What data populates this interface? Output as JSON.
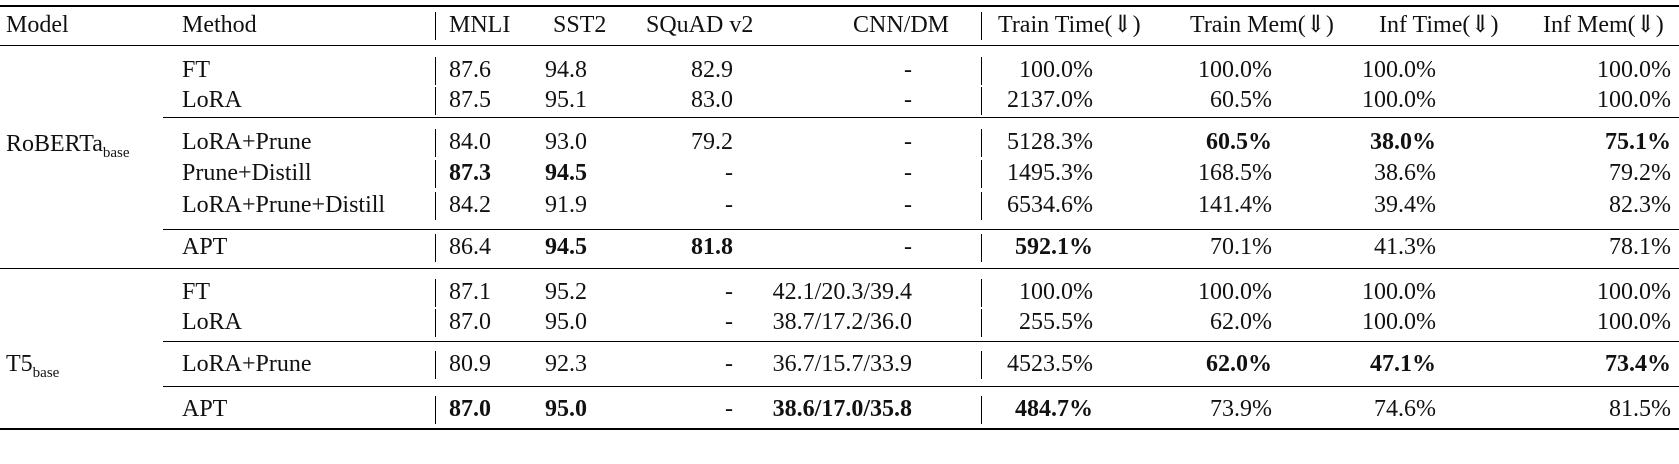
{
  "headers": {
    "model": "Model",
    "method": "Method",
    "mnli": "MNLI",
    "sst2": "SST2",
    "squad": "SQuAD v2",
    "cnndm": "CNN/DM",
    "train_time": "Train Time(⇓)",
    "train_mem": "Train Mem(⇓)",
    "inf_time": "Inf Time(⇓)",
    "inf_mem": "Inf Mem(⇓)"
  },
  "groups": [
    {
      "model": "RoBERTa",
      "model_sub": "base",
      "rows": [
        {
          "method": "FT",
          "mnli": "87.6",
          "sst2": "94.8",
          "squad": "82.9",
          "cnndm": "-",
          "train_time": "100.0%",
          "train_mem": "100.0%",
          "inf_time": "100.0%",
          "inf_mem": "100.0%",
          "bold": []
        },
        {
          "method": "LoRA",
          "mnli": "87.5",
          "sst2": "95.1",
          "squad": "83.0",
          "cnndm": "-",
          "train_time": "2137.0%",
          "train_mem": "60.5%",
          "inf_time": "100.0%",
          "inf_mem": "100.0%",
          "bold": []
        },
        {
          "method": "LoRA+Prune",
          "mnli": "84.0",
          "sst2": "93.0",
          "squad": "79.2",
          "cnndm": "-",
          "train_time": "5128.3%",
          "train_mem": "60.5%",
          "inf_time": "38.0%",
          "inf_mem": "75.1%",
          "bold": [
            "train_mem",
            "inf_time",
            "inf_mem"
          ]
        },
        {
          "method": "Prune+Distill",
          "mnli": "87.3",
          "sst2": "94.5",
          "squad": "-",
          "cnndm": "-",
          "train_time": "1495.3%",
          "train_mem": "168.5%",
          "inf_time": "38.6%",
          "inf_mem": "79.2%",
          "bold": [
            "mnli",
            "sst2"
          ]
        },
        {
          "method": "LoRA+Prune+Distill",
          "mnli": "84.2",
          "sst2": "91.9",
          "squad": "-",
          "cnndm": "-",
          "train_time": "6534.6%",
          "train_mem": "141.4%",
          "inf_time": "39.4%",
          "inf_mem": "82.3%",
          "bold": []
        },
        {
          "method": "APT",
          "mnli": "86.4",
          "sst2": "94.5",
          "squad": "81.8",
          "cnndm": "-",
          "train_time": "592.1%",
          "train_mem": "70.1%",
          "inf_time": "41.3%",
          "inf_mem": "78.1%",
          "bold": [
            "sst2",
            "squad",
            "train_time"
          ]
        }
      ]
    },
    {
      "model": "T5",
      "model_sub": "base",
      "rows": [
        {
          "method": "FT",
          "mnli": "87.1",
          "sst2": "95.2",
          "squad": "-",
          "cnndm": "42.1/20.3/39.4",
          "train_time": "100.0%",
          "train_mem": "100.0%",
          "inf_time": "100.0%",
          "inf_mem": "100.0%",
          "bold": []
        },
        {
          "method": "LoRA",
          "mnli": "87.0",
          "sst2": "95.0",
          "squad": "-",
          "cnndm": "38.7/17.2/36.0",
          "train_time": "255.5%",
          "train_mem": "62.0%",
          "inf_time": "100.0%",
          "inf_mem": "100.0%",
          "bold": []
        },
        {
          "method": "LoRA+Prune",
          "mnli": "80.9",
          "sst2": "92.3",
          "squad": "-",
          "cnndm": "36.7/15.7/33.9",
          "train_time": "4523.5%",
          "train_mem": "62.0%",
          "inf_time": "47.1%",
          "inf_mem": "73.4%",
          "bold": [
            "train_mem",
            "inf_time",
            "inf_mem"
          ]
        },
        {
          "method": "APT",
          "mnli": "87.0",
          "sst2": "95.0",
          "squad": "-",
          "cnndm": "38.6/17.0/35.8",
          "train_time": "484.7%",
          "train_mem": "73.9%",
          "inf_time": "74.6%",
          "inf_mem": "81.5%",
          "bold": [
            "mnli",
            "sst2",
            "cnndm",
            "train_time"
          ]
        }
      ]
    }
  ]
}
